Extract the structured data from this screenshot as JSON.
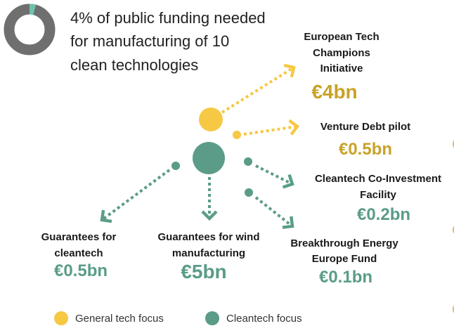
{
  "header": {
    "title_lines": [
      "4% of public funding needed",
      "for manufacturing of 10",
      "clean technologies"
    ]
  },
  "items": [
    {
      "label_lines": [
        "European Tech",
        "Champions",
        "Initiative"
      ],
      "amount": "€4bn",
      "group": "general"
    },
    {
      "label_lines": [
        "Venture Debt pilot"
      ],
      "amount": "€0.5bn",
      "group": "general"
    },
    {
      "label_lines": [
        "Cleantech Co-Investment",
        "Facility"
      ],
      "amount": "€0.2bn",
      "group": "clean"
    },
    {
      "label_lines": [
        "Breakthrough Energy",
        "Europe Fund"
      ],
      "amount": "€0.1bn",
      "group": "clean"
    },
    {
      "label_lines": [
        "Guarantees for",
        "cleantech"
      ],
      "amount": "€0.5bn",
      "group": "clean"
    },
    {
      "label_lines": [
        "Guarantees for wind",
        "manufacturing"
      ],
      "amount": "€5bn",
      "group": "clean"
    }
  ],
  "legend": [
    {
      "name": "General tech focus",
      "color": "#f6c844"
    },
    {
      "name": "Cleantech focus",
      "color": "#5a9c88"
    }
  ]
}
